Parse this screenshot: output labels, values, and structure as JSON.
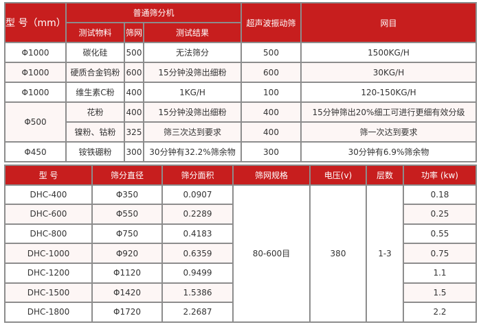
{
  "table1": {
    "headers": {
      "model": "型 号（mm）",
      "group": "普通筛分机",
      "material": "测试物料",
      "mesh": "筛网",
      "result": "测试结果",
      "ultrasonic": "超声波振动筛",
      "net": "网目"
    },
    "rows": [
      {
        "model": "Φ1000",
        "material": "碳化硅",
        "mesh": "500",
        "result": "无法筛分",
        "ultrasonic": "500",
        "net": "1500KG/H"
      },
      {
        "model": "Φ1000",
        "material": "硬质合金钨粉",
        "mesh": "600",
        "result": "15分钟没筛出细粉",
        "ultrasonic": "600",
        "net": "30KG/H"
      },
      {
        "model": "Φ1000",
        "material": "维生素C粉",
        "mesh": "400",
        "result": "1KG/H",
        "ultrasonic": "100",
        "net": "120-150KG/H"
      },
      {
        "model": "Φ500",
        "material": "花粉",
        "mesh": "400",
        "result": "15分钟没筛出细粉",
        "ultrasonic": "400",
        "net": "15分钟筛出20%细工可进行更细有效分级"
      },
      {
        "material": "镍粉、钴粉",
        "mesh": "325",
        "result": "筛三次达到要求",
        "ultrasonic": "400",
        "net": "筛一次达到要求"
      },
      {
        "model": "Φ450",
        "material": "铵铁硼粉",
        "mesh": "300",
        "result": "30分钟有32.2%筛余物",
        "ultrasonic": "300",
        "net": "30分钟有6.9%筛余物"
      }
    ]
  },
  "table2": {
    "headers": [
      "型 号",
      "筛分直径",
      "筛分面积",
      "筛网规格",
      "电压(v)",
      "层数",
      "功率 (kw)"
    ],
    "shared": {
      "mesh_spec": "80-600目",
      "voltage": "380",
      "layers": "1-3"
    },
    "rows": [
      {
        "model": "DHC-400",
        "diameter": "Φ350",
        "area": "0.0907",
        "power": "0.18"
      },
      {
        "model": "DHC-600",
        "diameter": "Φ550",
        "area": "0.2289",
        "power": "0.25"
      },
      {
        "model": "DHC-800",
        "diameter": "Φ750",
        "area": "0.4183",
        "power": "0.55"
      },
      {
        "model": "DHC-1000",
        "diameter": "Φ920",
        "area": "0.6359",
        "power": "0.75"
      },
      {
        "model": "DHC-1200",
        "diameter": "Φ1120",
        "area": "0.9499",
        "power": "1.1"
      },
      {
        "model": "DHC-1500",
        "diameter": "Φ1420",
        "area": "1.5386",
        "power": "1.5"
      },
      {
        "model": "DHC-1800",
        "diameter": "Φ1720",
        "area": "2.2687",
        "power": "2.2"
      }
    ]
  }
}
